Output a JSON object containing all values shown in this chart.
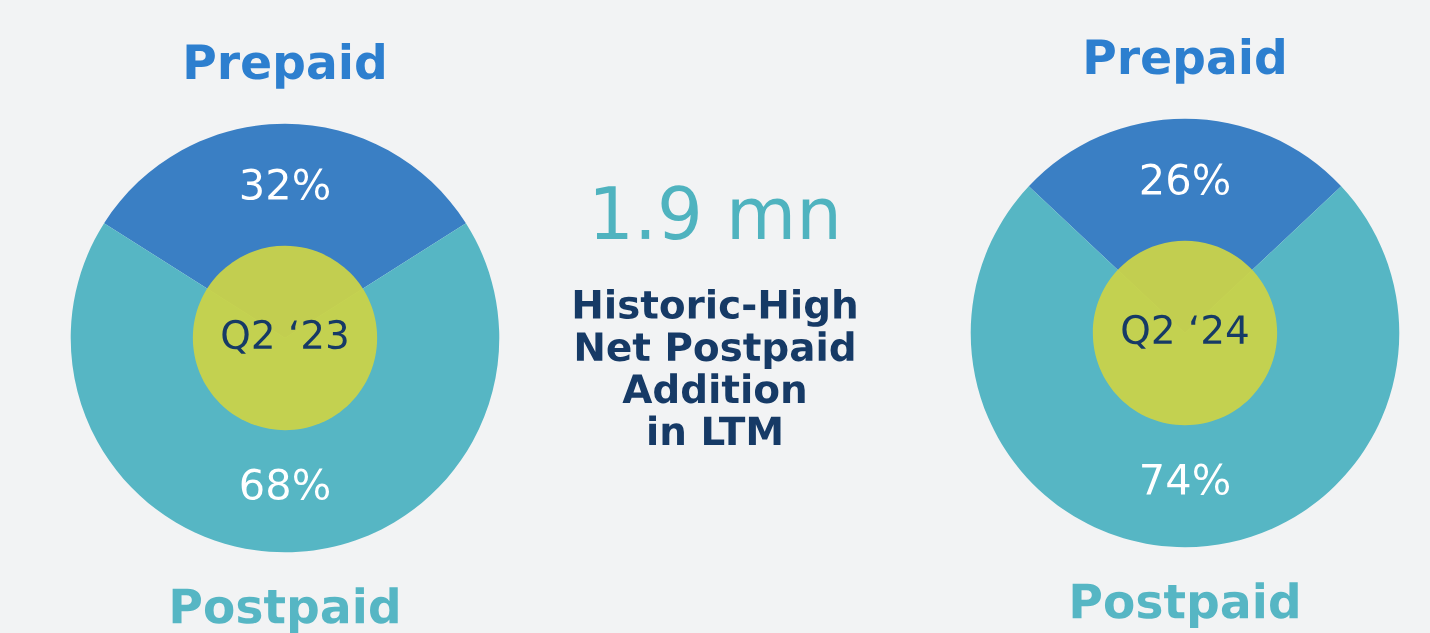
{
  "chart_data": [
    {
      "type": "donut",
      "title": "Q2 ‘23",
      "categories": [
        "Prepaid",
        "Postpaid"
      ],
      "values": [
        32,
        68
      ],
      "colors": [
        "#3a7fc4",
        "#56b6c4"
      ],
      "value_labels": [
        "32%",
        "68%"
      ],
      "legend": false
    },
    {
      "type": "other",
      "title": "1.9 mn",
      "subtitle": "Historic-High\nNet Postpaid\nAddition\nin LTM"
    },
    {
      "type": "donut",
      "title": "Q2 ‘24",
      "categories": [
        "Prepaid",
        "Postpaid"
      ],
      "values": [
        26,
        74
      ],
      "colors": [
        "#3a7fc4",
        "#56b6c4"
      ],
      "value_labels": [
        "26%",
        "74%"
      ],
      "legend": false
    }
  ]
}
